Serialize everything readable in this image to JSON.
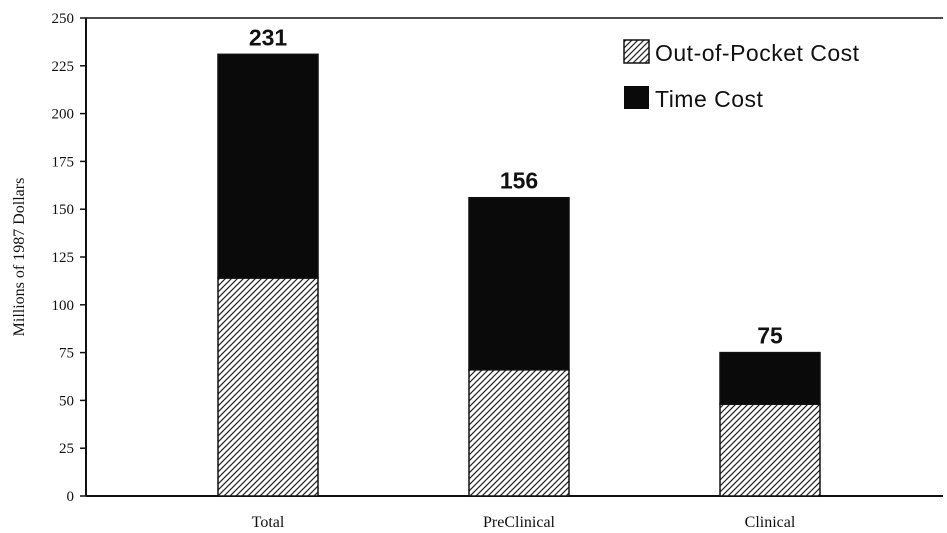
{
  "chart_data": {
    "type": "bar",
    "stacked": true,
    "ylabel": "Millions of 1987 Dollars",
    "ylim": [
      0,
      250
    ],
    "yticks": [
      0,
      25,
      50,
      75,
      100,
      125,
      150,
      175,
      200,
      225,
      250
    ],
    "categories": [
      "Total",
      "PreClinical",
      "Clinical"
    ],
    "totals": [
      "231",
      "156",
      "75"
    ],
    "series": [
      {
        "name": "Out-of-Pocket Cost",
        "values": [
          114,
          66,
          48
        ],
        "pattern": "hatch"
      },
      {
        "name": "Time Cost",
        "values": [
          117,
          90,
          27
        ],
        "color": "#0a0a0a"
      }
    ],
    "legend_position": "top-right",
    "grid": false
  }
}
